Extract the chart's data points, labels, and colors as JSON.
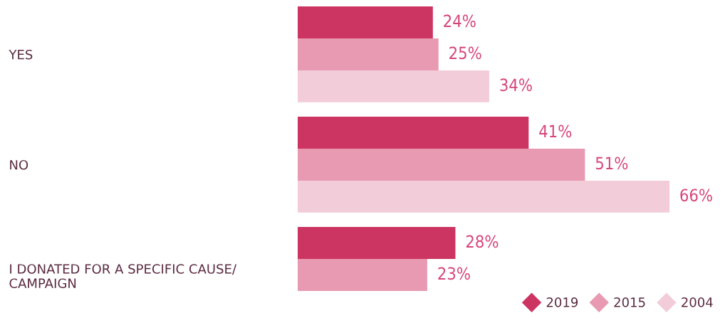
{
  "chart_data": {
    "type": "bar",
    "orientation": "horizontal",
    "categories": [
      "YES",
      "NO",
      "I DONATED FOR A SPECIFIC CAUSE/\nCAMPAIGN"
    ],
    "series": [
      {
        "name": "2019",
        "color": "#cc3461",
        "values": [
          24,
          41,
          28
        ],
        "value_labels": [
          "24%",
          "41%",
          "28%"
        ]
      },
      {
        "name": "2015",
        "color": "#e89ab2",
        "values": [
          25,
          51,
          23
        ],
        "value_labels": [
          "25%",
          "51%",
          "23%"
        ]
      },
      {
        "name": "2004",
        "color": "#f2ccd9",
        "values": [
          34,
          66,
          null
        ],
        "value_labels": [
          "34%",
          "66%",
          null
        ]
      }
    ],
    "tick_labels": "y",
    "grid": false,
    "legend": "bottom right",
    "marker": "diamond"
  }
}
